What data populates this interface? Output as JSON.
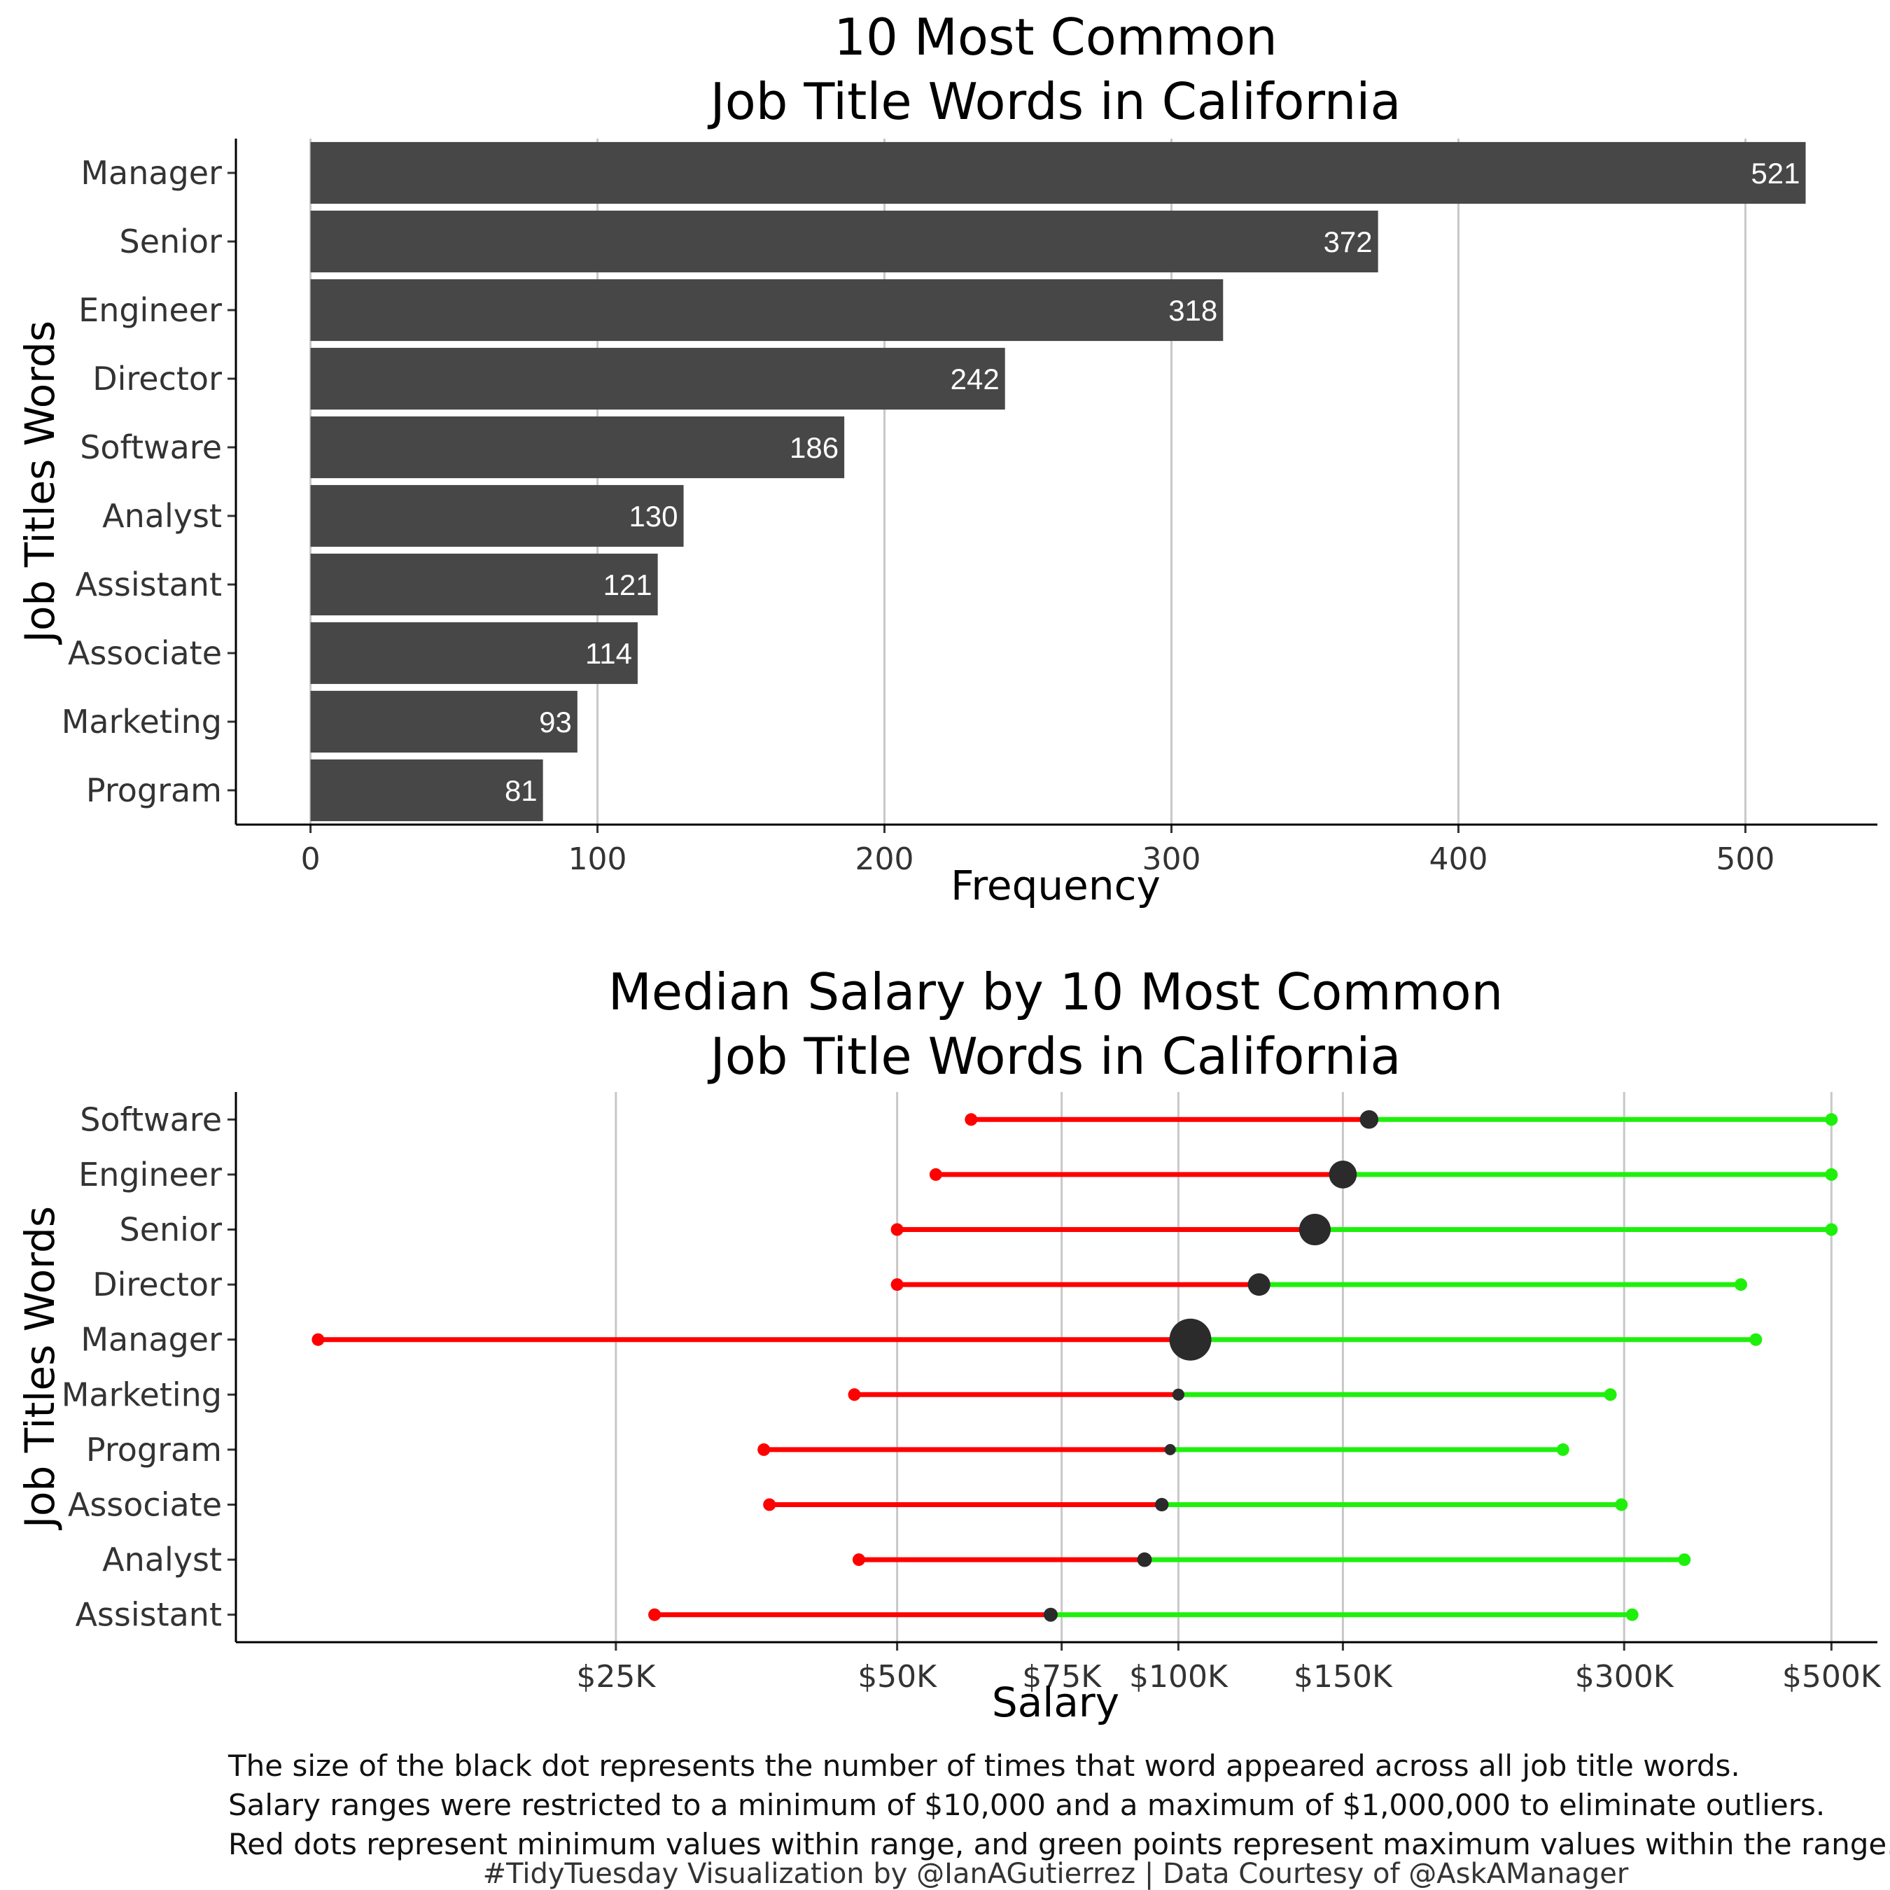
{
  "chart_data": [
    {
      "type": "bar",
      "title": [
        "10 Most Common",
        "Job Title Words in California"
      ],
      "xlabel": "Frequency",
      "ylabel": "Job Titles Words",
      "categories": [
        "Manager",
        "Senior",
        "Engineer",
        "Director",
        "Software",
        "Analyst",
        "Assistant",
        "Associate",
        "Marketing",
        "Program"
      ],
      "values": [
        521,
        372,
        318,
        242,
        186,
        130,
        121,
        114,
        93,
        81
      ],
      "xlim": [
        -26,
        546
      ],
      "xticks": [
        0,
        100,
        200,
        300,
        400,
        500
      ],
      "grid": "vertical",
      "colors": {
        "bar": "#474747",
        "label": "#ffffff",
        "grid": "#c8c8c8"
      }
    },
    {
      "type": "dumbbell",
      "title": [
        "Median Salary by 10 Most Common",
        "Job Title Words in California"
      ],
      "xlabel": "Salary",
      "ylabel": "Job Titles Words",
      "x_scale": "log",
      "xlim": [
        9800,
        560000
      ],
      "categories": [
        "Software",
        "Engineer",
        "Senior",
        "Director",
        "Manager",
        "Marketing",
        "Program",
        "Associate",
        "Analyst",
        "Assistant"
      ],
      "min": [
        60000,
        55000,
        50000,
        50000,
        12000,
        45000,
        36000,
        36500,
        45500,
        27500
      ],
      "median": [
        160000,
        150000,
        140000,
        122000,
        103000,
        100000,
        98000,
        96000,
        92000,
        73000
      ],
      "max": [
        500000,
        500000,
        500000,
        400000,
        415000,
        290000,
        258000,
        298000,
        348000,
        306000
      ],
      "count": [
        186,
        318,
        372,
        242,
        521,
        93,
        81,
        114,
        130,
        121
      ],
      "xticks": [
        {
          "value": 25000,
          "label": "$25K"
        },
        {
          "value": 50000,
          "label": "$50K"
        },
        {
          "value": 75000,
          "label": "$75K"
        },
        {
          "value": 100000,
          "label": "$100K"
        },
        {
          "value": 150000,
          "label": "$150K"
        },
        {
          "value": 300000,
          "label": "$300K"
        },
        {
          "value": 500000,
          "label": "$500K"
        }
      ],
      "grid": "vertical",
      "colors": {
        "min": "#ff0000",
        "max": "#1ef00c",
        "median": "#2b2b2b",
        "grid": "#c8c8c8"
      }
    }
  ],
  "caption": [
    "The size of the black dot represents the number of times that word appeared across all job title words.",
    "Salary ranges were restricted to a minimum of $10,000 and a maximum of $1,000,000 to eliminate outliers.",
    "Red dots represent minimum values within range, and green points represent maximum values within the range."
  ],
  "credit": "#TidyTuesday Visualization by @IanAGutierrez | Data Courtesy of @AskAManager"
}
